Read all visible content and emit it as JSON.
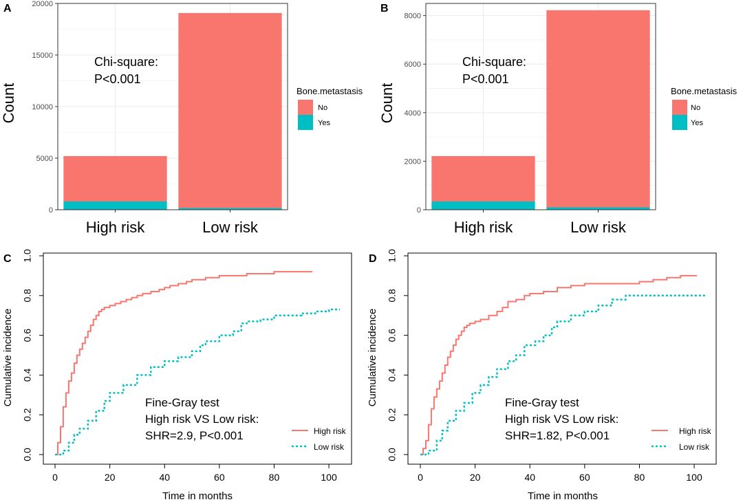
{
  "colors": {
    "no": "#F8766D",
    "yes": "#00BFC4",
    "high": "#F8766D",
    "low": "#00BFC4",
    "grid": "#EBEBEB",
    "axis": "#333333"
  },
  "legend": {
    "title": "Bone.metastasis",
    "no_label": "No",
    "yes_label": "Yes"
  },
  "chart_data": [
    {
      "panel": "A",
      "type": "bar",
      "stacked": true,
      "categories": [
        "High risk",
        "Low risk"
      ],
      "series": [
        {
          "name": "No",
          "values": [
            4400,
            18900
          ]
        },
        {
          "name": "Yes",
          "values": [
            800,
            170
          ]
        }
      ],
      "ylabel": "Count",
      "ylim": [
        0,
        20000
      ],
      "yticks": [
        0,
        5000,
        10000,
        15000,
        20000
      ],
      "yticklabels": [
        "0",
        "5000",
        "10000",
        "15000",
        "20000"
      ],
      "annotation": [
        "Chi-square:",
        "P<0.001"
      ]
    },
    {
      "panel": "B",
      "type": "bar",
      "stacked": true,
      "categories": [
        "High risk",
        "Low risk"
      ],
      "series": [
        {
          "name": "No",
          "values": [
            1870,
            8120
          ]
        },
        {
          "name": "Yes",
          "values": [
            340,
            100
          ]
        }
      ],
      "ylabel": "Count",
      "ylim": [
        0,
        8500
      ],
      "yticks": [
        0,
        2000,
        4000,
        6000,
        8000
      ],
      "yticklabels": [
        "0",
        "2000",
        "4000",
        "6000",
        "8000"
      ],
      "annotation": [
        "Chi-square:",
        "P<0.001"
      ]
    },
    {
      "panel": "C",
      "type": "line",
      "step": true,
      "xlabel": "Time in months",
      "ylabel": "Cumulative incidence",
      "xlim": [
        0,
        104
      ],
      "ylim": [
        0,
        1.0
      ],
      "xticks": [
        0,
        20,
        40,
        60,
        80,
        100
      ],
      "xticklabels": [
        "0",
        "20",
        "40",
        "60",
        "80",
        "100"
      ],
      "yticks": [
        0,
        0.2,
        0.4,
        0.6,
        0.8,
        1.0
      ],
      "yticklabels": [
        "0.0",
        "0.2",
        "0.4",
        "0.6",
        "0.8",
        "1.0"
      ],
      "series": [
        {
          "name": "High risk",
          "style": "solid",
          "x": [
            0,
            1,
            2,
            3,
            4,
            5,
            6,
            7,
            8,
            9,
            10,
            11,
            12,
            13,
            14,
            15,
            16,
            17,
            18,
            20,
            22,
            24,
            26,
            28,
            30,
            32,
            35,
            38,
            40,
            42,
            45,
            48,
            50,
            55,
            60,
            70,
            80,
            94
          ],
          "y": [
            0,
            0.06,
            0.14,
            0.24,
            0.31,
            0.37,
            0.41,
            0.46,
            0.5,
            0.53,
            0.56,
            0.59,
            0.62,
            0.65,
            0.68,
            0.7,
            0.72,
            0.73,
            0.74,
            0.75,
            0.76,
            0.77,
            0.78,
            0.79,
            0.8,
            0.81,
            0.82,
            0.83,
            0.84,
            0.85,
            0.86,
            0.87,
            0.88,
            0.89,
            0.9,
            0.91,
            0.92,
            0.92
          ]
        },
        {
          "name": "Low risk",
          "style": "dotted",
          "x": [
            0,
            3,
            5,
            7,
            9,
            12,
            15,
            18,
            20,
            25,
            30,
            35,
            40,
            45,
            50,
            53,
            55,
            60,
            65,
            68,
            70,
            75,
            80,
            90,
            95,
            100,
            104
          ],
          "y": [
            0,
            0.02,
            0.06,
            0.1,
            0.13,
            0.17,
            0.22,
            0.27,
            0.31,
            0.35,
            0.4,
            0.44,
            0.47,
            0.49,
            0.52,
            0.55,
            0.57,
            0.6,
            0.62,
            0.66,
            0.67,
            0.68,
            0.7,
            0.71,
            0.72,
            0.73,
            0.73
          ]
        }
      ],
      "annotation": [
        "Fine-Gray test",
        "High risk VS Low risk:",
        "SHR=2.9, P<0.001"
      ],
      "legend": [
        "High risk",
        "Low risk"
      ]
    },
    {
      "panel": "D",
      "type": "line",
      "step": true,
      "xlabel": "Time in months",
      "ylabel": "Cumulative incidence",
      "xlim": [
        0,
        104
      ],
      "ylim": [
        0,
        1.0
      ],
      "xticks": [
        0,
        20,
        40,
        60,
        80,
        100
      ],
      "xticklabels": [
        "0",
        "20",
        "40",
        "60",
        "80",
        "100"
      ],
      "yticks": [
        0,
        0.2,
        0.4,
        0.6,
        0.8,
        1.0
      ],
      "yticklabels": [
        "0.0",
        "0.2",
        "0.4",
        "0.6",
        "0.8",
        "1.0"
      ],
      "series": [
        {
          "name": "High risk",
          "style": "solid",
          "x": [
            0,
            1,
            2,
            3,
            4,
            5,
            6,
            7,
            8,
            9,
            10,
            11,
            12,
            13,
            14,
            15,
            16,
            17,
            18,
            20,
            22,
            25,
            28,
            30,
            32,
            35,
            38,
            40,
            45,
            50,
            55,
            60,
            70,
            80,
            85,
            90,
            95,
            101
          ],
          "y": [
            0,
            0.03,
            0.07,
            0.15,
            0.23,
            0.29,
            0.33,
            0.37,
            0.41,
            0.45,
            0.49,
            0.52,
            0.55,
            0.58,
            0.6,
            0.62,
            0.64,
            0.65,
            0.66,
            0.67,
            0.68,
            0.7,
            0.72,
            0.74,
            0.77,
            0.78,
            0.8,
            0.81,
            0.82,
            0.84,
            0.85,
            0.86,
            0.86,
            0.87,
            0.88,
            0.89,
            0.9,
            0.9
          ]
        },
        {
          "name": "Low risk",
          "style": "dotted",
          "x": [
            0,
            3,
            6,
            8,
            10,
            13,
            16,
            19,
            22,
            25,
            28,
            32,
            35,
            38,
            42,
            45,
            48,
            50,
            55,
            60,
            65,
            70,
            75,
            104
          ],
          "y": [
            0,
            0.02,
            0.07,
            0.12,
            0.17,
            0.22,
            0.26,
            0.31,
            0.35,
            0.39,
            0.43,
            0.47,
            0.5,
            0.55,
            0.57,
            0.6,
            0.64,
            0.67,
            0.7,
            0.72,
            0.75,
            0.78,
            0.8,
            0.8
          ]
        }
      ],
      "annotation": [
        "Fine-Gray test",
        "High risk VS Low risk:",
        "SHR=1.82, P<0.001"
      ],
      "legend": [
        "High risk",
        "Low risk"
      ]
    }
  ]
}
